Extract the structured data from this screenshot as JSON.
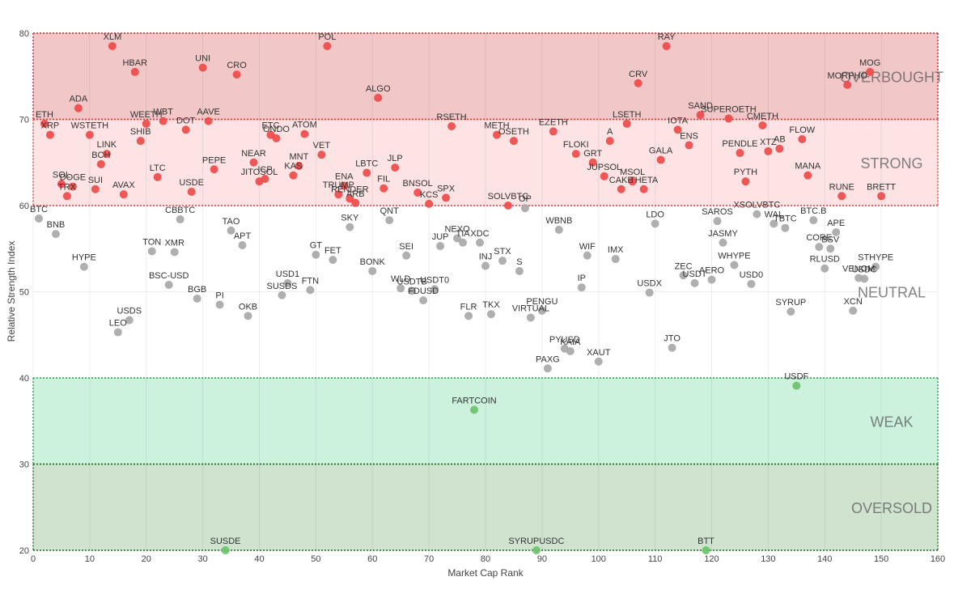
{
  "chart_data": {
    "type": "scatter",
    "xlabel": "Market Cap Rank",
    "ylabel": "Relative Strength Index",
    "xlim": [
      0,
      160
    ],
    "ylim": [
      20,
      80
    ],
    "x_ticks": [
      0,
      10,
      20,
      30,
      40,
      50,
      60,
      70,
      80,
      90,
      100,
      110,
      120,
      130,
      140,
      150,
      160
    ],
    "y_ticks": [
      20,
      30,
      40,
      50,
      60,
      70,
      80
    ],
    "grid": true,
    "zones": [
      {
        "name": "OVERBOUGHT",
        "from": 70,
        "to": 80,
        "color": "#f2c7c7",
        "line": "#cc2222"
      },
      {
        "name": "STRONG",
        "from": 60,
        "to": 70,
        "color": "#fde3e3",
        "line": "#e04040"
      },
      {
        "name": "NEUTRAL",
        "from": 40,
        "to": 60,
        "color": "#ffffff",
        "line": null
      },
      {
        "name": "WEAK",
        "from": 30,
        "to": 40,
        "color": "#ccf2de",
        "line": "#2e9e4e"
      },
      {
        "name": "OVERSOLD",
        "from": 20,
        "to": 30,
        "color": "#cfe3cf",
        "line": "#1f6f1f"
      }
    ],
    "colors": {
      "high": "#ee4a4a",
      "neutral": "#a8a8a8",
      "low": "#6cc26c"
    },
    "points": [
      {
        "label": "XLM",
        "x": 14,
        "y": 78.5
      },
      {
        "label": "POL",
        "x": 52,
        "y": 78.5
      },
      {
        "label": "RAY",
        "x": 112,
        "y": 78.5
      },
      {
        "label": "HBAR",
        "x": 18,
        "y": 75.5
      },
      {
        "label": "UNI",
        "x": 30,
        "y": 76
      },
      {
        "label": "CRO",
        "x": 36,
        "y": 75.2
      },
      {
        "label": "MOG",
        "x": 148,
        "y": 75.5
      },
      {
        "label": "MORPHO",
        "x": 144,
        "y": 74
      },
      {
        "label": "CRV",
        "x": 107,
        "y": 74.2
      },
      {
        "label": "ALGO",
        "x": 61,
        "y": 72.5
      },
      {
        "label": "ADA",
        "x": 8,
        "y": 71.3
      },
      {
        "label": "ETH",
        "x": 2,
        "y": 69.5
      },
      {
        "label": "XRP",
        "x": 3,
        "y": 68.2
      },
      {
        "label": "WSTETH",
        "x": 10,
        "y": 68.2
      },
      {
        "label": "WEETH",
        "x": 20,
        "y": 69.5
      },
      {
        "label": "WBT",
        "x": 23,
        "y": 69.8
      },
      {
        "label": "AAVE",
        "x": 31,
        "y": 69.8
      },
      {
        "label": "DOT",
        "x": 27,
        "y": 68.8
      },
      {
        "label": "SHIB",
        "x": 19,
        "y": 67.5
      },
      {
        "label": "ETC",
        "x": 42,
        "y": 68.2
      },
      {
        "label": "ONDO",
        "x": 43,
        "y": 67.8
      },
      {
        "label": "ATOM",
        "x": 48,
        "y": 68.3
      },
      {
        "label": "RSETH",
        "x": 74,
        "y": 69.2
      },
      {
        "label": "METH",
        "x": 82,
        "y": 68.2
      },
      {
        "label": "OSETH",
        "x": 85,
        "y": 67.5
      },
      {
        "label": "EZETH",
        "x": 92,
        "y": 68.6
      },
      {
        "label": "LSETH",
        "x": 105,
        "y": 69.5
      },
      {
        "label": "SAND",
        "x": 118,
        "y": 70.5
      },
      {
        "label": "IOTA",
        "x": 114,
        "y": 68.8
      },
      {
        "label": "SUPEROETH",
        "x": 123,
        "y": 70.1
      },
      {
        "label": "CMETH",
        "x": 129,
        "y": 69.3
      },
      {
        "label": "LINK",
        "x": 13,
        "y": 66
      },
      {
        "label": "BCH",
        "x": 12,
        "y": 64.8
      },
      {
        "label": "VET",
        "x": 51,
        "y": 65.9
      },
      {
        "label": "MNT",
        "x": 47,
        "y": 64.6
      },
      {
        "label": "NEAR",
        "x": 39,
        "y": 65
      },
      {
        "label": "PEPE",
        "x": 32,
        "y": 64.2
      },
      {
        "label": "LTC",
        "x": 22,
        "y": 63.3
      },
      {
        "label": "KAS",
        "x": 46,
        "y": 63.5
      },
      {
        "label": "ICP",
        "x": 41,
        "y": 63.1
      },
      {
        "label": "JITOSOL",
        "x": 40,
        "y": 62.8
      },
      {
        "label": "LBTC",
        "x": 59,
        "y": 63.8
      },
      {
        "label": "JLP",
        "x": 64,
        "y": 64.4
      },
      {
        "label": "FIL",
        "x": 62,
        "y": 62
      },
      {
        "label": "ENA",
        "x": 55,
        "y": 62.3
      },
      {
        "label": "TRUMP",
        "x": 54,
        "y": 61.3
      },
      {
        "label": "FLOKI",
        "x": 96,
        "y": 66
      },
      {
        "label": "A",
        "x": 102,
        "y": 67.5
      },
      {
        "label": "GRT",
        "x": 99,
        "y": 65
      },
      {
        "label": "JUPSOL",
        "x": 101,
        "y": 63.4
      },
      {
        "label": "MSOL",
        "x": 106,
        "y": 62.8
      },
      {
        "label": "CAKE",
        "x": 104,
        "y": 61.9
      },
      {
        "label": "THETA",
        "x": 108,
        "y": 61.9
      },
      {
        "label": "GALA",
        "x": 111,
        "y": 65.3
      },
      {
        "label": "ENS",
        "x": 116,
        "y": 67
      },
      {
        "label": "PENDLE",
        "x": 125,
        "y": 66.1
      },
      {
        "label": "XTZ",
        "x": 130,
        "y": 66.3
      },
      {
        "label": "AB",
        "x": 132,
        "y": 66.6
      },
      {
        "label": "FLOW",
        "x": 136,
        "y": 67.7
      },
      {
        "label": "PYTH",
        "x": 126,
        "y": 62.8
      },
      {
        "label": "MANA",
        "x": 137,
        "y": 63.5
      },
      {
        "label": "RUNE",
        "x": 143,
        "y": 61.1
      },
      {
        "label": "BRETT",
        "x": 150,
        "y": 61.1
      },
      {
        "label": "SOL",
        "x": 5,
        "y": 62.5
      },
      {
        "label": "DOGE",
        "x": 7,
        "y": 62.2
      },
      {
        "label": "TRX",
        "x": 6,
        "y": 61.1
      },
      {
        "label": "SUI",
        "x": 11,
        "y": 61.9
      },
      {
        "label": "AVAX",
        "x": 16,
        "y": 61.3
      },
      {
        "label": "USDE",
        "x": 28,
        "y": 61.6
      },
      {
        "label": "ARB",
        "x": 57,
        "y": 60.3
      },
      {
        "label": "RENDER",
        "x": 56,
        "y": 60.8
      },
      {
        "label": "BNSOL",
        "x": 68,
        "y": 61.5
      },
      {
        "label": "KCS",
        "x": 70,
        "y": 60.2
      },
      {
        "label": "SPX",
        "x": 73,
        "y": 60.9
      },
      {
        "label": "SOLVBTC",
        "x": 84,
        "y": 60
      },
      {
        "label": "BTC",
        "x": 1,
        "y": 58.5
      },
      {
        "label": "BNB",
        "x": 4,
        "y": 56.7
      },
      {
        "label": "HYPE",
        "x": 9,
        "y": 52.9
      },
      {
        "label": "CBBTC",
        "x": 26,
        "y": 58.4
      },
      {
        "label": "TAO",
        "x": 35,
        "y": 57.1
      },
      {
        "label": "APT",
        "x": 37,
        "y": 55.4
      },
      {
        "label": "TON",
        "x": 21,
        "y": 54.7
      },
      {
        "label": "XMR",
        "x": 25,
        "y": 54.6
      },
      {
        "label": "BSC-USD",
        "x": 24,
        "y": 50.8
      },
      {
        "label": "BGB",
        "x": 29,
        "y": 49.2
      },
      {
        "label": "PI",
        "x": 33,
        "y": 48.5
      },
      {
        "label": "OKB",
        "x": 38,
        "y": 47.2
      },
      {
        "label": "USDS",
        "x": 17,
        "y": 46.7
      },
      {
        "label": "LEO",
        "x": 15,
        "y": 45.3
      },
      {
        "label": "USD1",
        "x": 45,
        "y": 51
      },
      {
        "label": "SUSDS",
        "x": 44,
        "y": 49.6
      },
      {
        "label": "FTN",
        "x": 49,
        "y": 50.2
      },
      {
        "label": "GT",
        "x": 50,
        "y": 54.3
      },
      {
        "label": "FET",
        "x": 53,
        "y": 53.7
      },
      {
        "label": "SKY",
        "x": 56,
        "y": 57.5
      },
      {
        "label": "QNT",
        "x": 63,
        "y": 58.3
      },
      {
        "label": "BONK",
        "x": 60,
        "y": 52.4
      },
      {
        "label": "SEI",
        "x": 66,
        "y": 54.2
      },
      {
        "label": "JUP",
        "x": 72,
        "y": 55.3
      },
      {
        "label": "NEXO",
        "x": 75,
        "y": 56.2
      },
      {
        "label": "TIA",
        "x": 76,
        "y": 55.7
      },
      {
        "label": "XDC",
        "x": 79,
        "y": 55.7
      },
      {
        "label": "INJ",
        "x": 80,
        "y": 53
      },
      {
        "label": "STX",
        "x": 83,
        "y": 53.6
      },
      {
        "label": "S",
        "x": 86,
        "y": 52.4
      },
      {
        "label": "OP",
        "x": 87,
        "y": 59.7
      },
      {
        "label": "WLD",
        "x": 65,
        "y": 50.4
      },
      {
        "label": "USDTB",
        "x": 67,
        "y": 50.1
      },
      {
        "label": "FDUSD",
        "x": 69,
        "y": 49
      },
      {
        "label": "USDT0",
        "x": 71,
        "y": 50.3
      },
      {
        "label": "FLR",
        "x": 77,
        "y": 47.2
      },
      {
        "label": "TKX",
        "x": 81,
        "y": 47.4
      },
      {
        "label": "VIRTUAL",
        "x": 88,
        "y": 47
      },
      {
        "label": "PENGU",
        "x": 90,
        "y": 47.8
      },
      {
        "label": "WBNB",
        "x": 93,
        "y": 57.2
      },
      {
        "label": "WIF",
        "x": 98,
        "y": 54.2
      },
      {
        "label": "IP",
        "x": 97,
        "y": 50.5
      },
      {
        "label": "IMX",
        "x": 103,
        "y": 53.8
      },
      {
        "label": "PYUSD",
        "x": 94,
        "y": 43.4
      },
      {
        "label": "KAIA",
        "x": 95,
        "y": 43.1
      },
      {
        "label": "PAXG",
        "x": 91,
        "y": 41.1
      },
      {
        "label": "XAUT",
        "x": 100,
        "y": 41.9
      },
      {
        "label": "LDO",
        "x": 110,
        "y": 57.9
      },
      {
        "label": "USDX",
        "x": 109,
        "y": 49.9
      },
      {
        "label": "ZEC",
        "x": 115,
        "y": 51.9
      },
      {
        "label": "USDT",
        "x": 117,
        "y": 51
      },
      {
        "label": "AERO",
        "x": 120,
        "y": 51.4
      },
      {
        "label": "JTO",
        "x": 113,
        "y": 43.5
      },
      {
        "label": "SAROS",
        "x": 121,
        "y": 58.2
      },
      {
        "label": "JASMY",
        "x": 122,
        "y": 55.7
      },
      {
        "label": "WHYPE",
        "x": 124,
        "y": 53.1
      },
      {
        "label": "USD0",
        "x": 127,
        "y": 50.9
      },
      {
        "label": "XSOLVBTC",
        "x": 128,
        "y": 59
      },
      {
        "label": "WAL",
        "x": 131,
        "y": 57.9
      },
      {
        "label": "TBTC",
        "x": 133,
        "y": 57.4
      },
      {
        "label": "SYRUP",
        "x": 134,
        "y": 47.7
      },
      {
        "label": "BTC.B",
        "x": 138,
        "y": 58.3
      },
      {
        "label": "CORE",
        "x": 139,
        "y": 55.2
      },
      {
        "label": "APE",
        "x": 142,
        "y": 56.9
      },
      {
        "label": "BSV",
        "x": 141,
        "y": 55
      },
      {
        "label": "RLUSD",
        "x": 140,
        "y": 52.7
      },
      {
        "label": "VENOM",
        "x": 146,
        "y": 51.6
      },
      {
        "label": "USDC",
        "x": 147,
        "y": 51.5
      },
      {
        "label": "STHYPE",
        "x": 149,
        "y": 52.9
      },
      {
        "label": "XCN",
        "x": 145,
        "y": 47.8
      },
      {
        "label": "USDF",
        "x": 135,
        "y": 39.1
      },
      {
        "label": "FARTCOIN",
        "x": 78,
        "y": 36.3
      },
      {
        "label": "SUSDE",
        "x": 34,
        "y": 20
      },
      {
        "label": "SYRUPUSDC",
        "x": 89,
        "y": 20
      },
      {
        "label": "BTT",
        "x": 119,
        "y": 20
      }
    ]
  }
}
